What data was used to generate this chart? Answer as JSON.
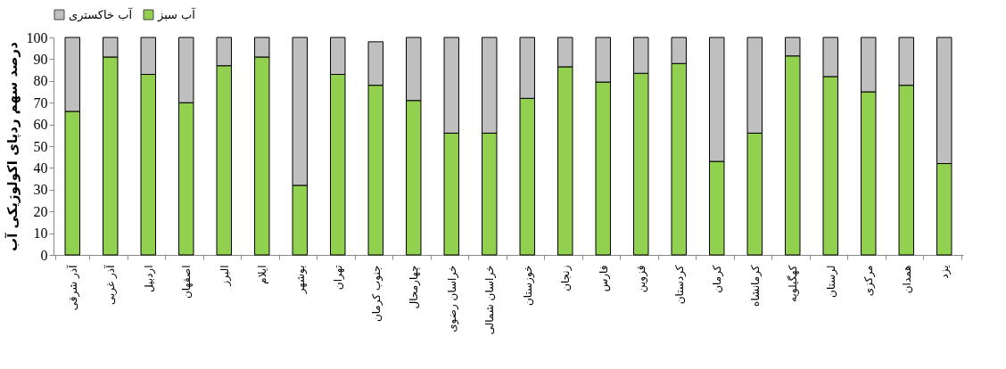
{
  "chart_data": {
    "type": "bar",
    "stacked": true,
    "ylabel": "درصد سهم ردپای اکولوژیکی آب",
    "categories": [
      "آذر شرقی",
      "آذر غربی",
      "اردبیل",
      "اصفهان",
      "البرز",
      "ایلام",
      "بوشهر",
      "تهران",
      "جنوب کرمان",
      "چهارمحال",
      "خراسان رضوی",
      "خراسان شمالی",
      "خوزستان",
      "زنجان",
      "فارس",
      "قزوین",
      "کردستان",
      "کرمان",
      "کرمانشاه",
      "کهگیلویه",
      "لرستان",
      "مرکزی",
      "همدان",
      "یزد"
    ],
    "series": [
      {
        "name": "آب سبز",
        "color": "#92d050",
        "values": [
          66,
          91,
          83,
          70,
          87,
          91,
          32,
          83,
          78,
          71,
          56,
          56,
          72,
          86.5,
          79.5,
          83.5,
          88,
          43,
          56,
          91.5,
          82,
          75,
          78,
          42
        ]
      },
      {
        "name": "آب خاکستری",
        "color": "#bfbfbf",
        "values": [
          34,
          9,
          17,
          30,
          13,
          9,
          68,
          17,
          20,
          29,
          44,
          44,
          28,
          13.5,
          20.5,
          16.5,
          12,
          57,
          44,
          8.5,
          18,
          25,
          22,
          58
        ]
      }
    ],
    "ylim": [
      0,
      100
    ],
    "yticks": [
      0,
      10,
      20,
      30,
      40,
      50,
      60,
      70,
      80,
      90,
      100
    ],
    "grid": false,
    "legend": "top"
  }
}
